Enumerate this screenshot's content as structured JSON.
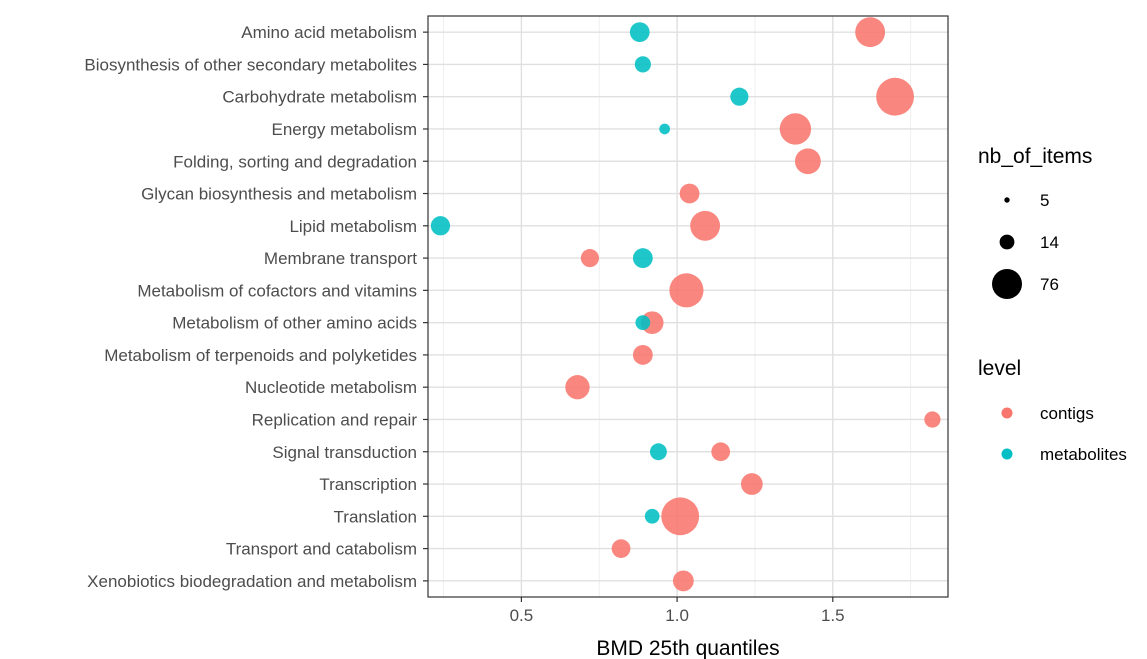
{
  "chart_data": {
    "type": "scatter",
    "title": "",
    "xlabel": "BMD 25th quantiles",
    "ylabel": "",
    "xlim": [
      0.2,
      1.87
    ],
    "x_ticks": [
      0.5,
      1.0,
      1.5
    ],
    "x_tick_labels": [
      "0.5",
      "1.0",
      "1.5"
    ],
    "grid": true,
    "legend_placement": "right",
    "categories": [
      "Amino acid metabolism",
      "Biosynthesis of other secondary metabolites",
      "Carbohydrate metabolism",
      "Energy metabolism",
      "Folding, sorting and degradation",
      "Glycan biosynthesis and metabolism",
      "Lipid metabolism",
      "Membrane transport",
      "Metabolism of cofactors and vitamins",
      "Metabolism of other amino acids",
      "Metabolism of terpenoids and polyketides",
      "Nucleotide metabolism",
      "Replication and repair",
      "Signal transduction",
      "Transcription",
      "Translation",
      "Transport and catabolism",
      "Xenobiotics biodegradation and metabolism"
    ],
    "series": [
      {
        "name": "contigs",
        "color": "#F8766D",
        "points": [
          {
            "category": "Amino acid metabolism",
            "x": 1.62,
            "size": 40
          },
          {
            "category": "Carbohydrate metabolism",
            "x": 1.7,
            "size": 70
          },
          {
            "category": "Energy metabolism",
            "x": 1.38,
            "size": 45
          },
          {
            "category": "Folding, sorting and degradation",
            "x": 1.42,
            "size": 28
          },
          {
            "category": "Glycan biosynthesis and metabolism",
            "x": 1.04,
            "size": 14
          },
          {
            "category": "Lipid metabolism",
            "x": 1.09,
            "size": 40
          },
          {
            "category": "Membrane transport",
            "x": 0.72,
            "size": 11
          },
          {
            "category": "Metabolism of cofactors and vitamins",
            "x": 1.03,
            "size": 55
          },
          {
            "category": "Metabolism of other amino acids",
            "x": 0.92,
            "size": 20
          },
          {
            "category": "Metabolism of terpenoids and polyketides",
            "x": 0.89,
            "size": 14
          },
          {
            "category": "Nucleotide metabolism",
            "x": 0.68,
            "size": 24
          },
          {
            "category": "Replication and repair",
            "x": 1.82,
            "size": 8
          },
          {
            "category": "Signal transduction",
            "x": 1.14,
            "size": 12
          },
          {
            "category": "Transcription",
            "x": 1.24,
            "size": 18
          },
          {
            "category": "Translation",
            "x": 1.01,
            "size": 70
          },
          {
            "category": "Transport and catabolism",
            "x": 0.82,
            "size": 12
          },
          {
            "category": "Xenobiotics biodegradation and metabolism",
            "x": 1.02,
            "size": 16
          }
        ]
      },
      {
        "name": "metabolites",
        "color": "#00BFC4",
        "points": [
          {
            "category": "Amino acid metabolism",
            "x": 0.88,
            "size": 14
          },
          {
            "category": "Biosynthesis of other secondary metabolites",
            "x": 0.89,
            "size": 8
          },
          {
            "category": "Carbohydrate metabolism",
            "x": 1.2,
            "size": 11
          },
          {
            "category": "Energy metabolism",
            "x": 0.96,
            "size": 2
          },
          {
            "category": "Lipid metabolism",
            "x": 0.24,
            "size": 13
          },
          {
            "category": "Membrane transport",
            "x": 0.89,
            "size": 14
          },
          {
            "category": "Metabolism of other amino acids",
            "x": 0.89,
            "size": 6
          },
          {
            "category": "Signal transduction",
            "x": 0.94,
            "size": 9
          },
          {
            "category": "Translation",
            "x": 0.92,
            "size": 6
          }
        ]
      }
    ],
    "legends": {
      "size": {
        "title": "nb_of_items",
        "entries": [
          {
            "label": "5",
            "size": 5
          },
          {
            "label": "14",
            "size": 14
          },
          {
            "label": "76",
            "size": 76
          }
        ]
      },
      "color": {
        "title": "level",
        "entries": [
          {
            "label": "contigs",
            "color": "#F8766D"
          },
          {
            "label": "metabolites",
            "color": "#00BFC4"
          }
        ]
      }
    }
  }
}
